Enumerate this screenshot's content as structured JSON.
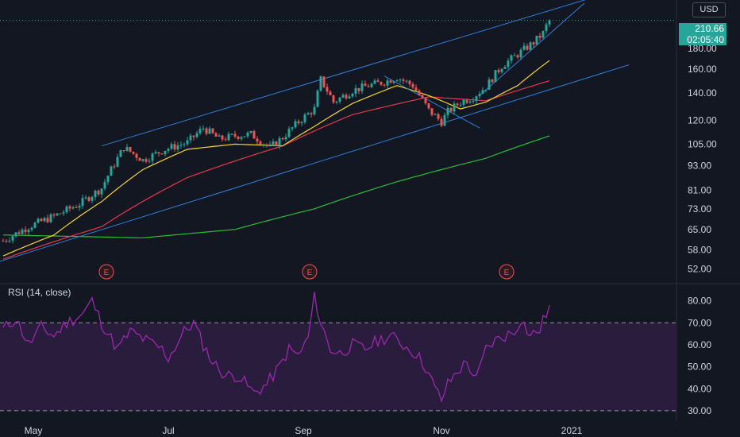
{
  "currency_button": "USD",
  "price_axis_top_label": "2",
  "last_price": "210.66",
  "countdown": "02:05:40",
  "earnings_marker": "E",
  "rsi_title": "RSI (14, close)",
  "colors": {
    "background": "#131722",
    "up": "#26a69a",
    "down": "#ef5350",
    "sma20": "#f7d531",
    "sma50": "#e5384e",
    "sma200": "#2bbd3a",
    "channel": "#2f7fd8",
    "rsi": "#9c27b0",
    "rsi_band": "#2a1c3c"
  },
  "chart_data": [
    {
      "type": "candlestick",
      "scale": "log",
      "ylim": [
        49,
        232
      ],
      "y_ticks": [
        "180.00",
        "160.00",
        "140.00",
        "120.00",
        "105.00",
        "93.00",
        "81.00",
        "73.00",
        "65.00",
        "58.00",
        "52.00"
      ],
      "x_ticks": [
        "May",
        "Jul",
        "Sep",
        "Nov",
        "2021"
      ],
      "last_price": 210.66,
      "close_anchors": [
        [
          0,
          61
        ],
        [
          8,
          66
        ],
        [
          16,
          70
        ],
        [
          24,
          75
        ],
        [
          31,
          82
        ],
        [
          38,
          103
        ],
        [
          44,
          96
        ],
        [
          51,
          102
        ],
        [
          58,
          106
        ],
        [
          63,
          115
        ],
        [
          68,
          108
        ],
        [
          73,
          110
        ],
        [
          78,
          111
        ],
        [
          84,
          103
        ],
        [
          88,
          109
        ],
        [
          93,
          119
        ],
        [
          98,
          128
        ],
        [
          100,
          151
        ],
        [
          104,
          133
        ],
        [
          110,
          142
        ],
        [
          115,
          146
        ],
        [
          120,
          149
        ],
        [
          124,
          153
        ],
        [
          129,
          146
        ],
        [
          134,
          127
        ],
        [
          138,
          119
        ],
        [
          140,
          126
        ],
        [
          144,
          133
        ],
        [
          148,
          137
        ],
        [
          152,
          145
        ],
        [
          157,
          163
        ],
        [
          162,
          174
        ],
        [
          167,
          186
        ],
        [
          170,
          196
        ],
        [
          172,
          212
        ]
      ],
      "sma20_anchors": [
        [
          0,
          56
        ],
        [
          16,
          63
        ],
        [
          31,
          76
        ],
        [
          44,
          91
        ],
        [
          58,
          102
        ],
        [
          73,
          105
        ],
        [
          88,
          104
        ],
        [
          98,
          116
        ],
        [
          110,
          132
        ],
        [
          124,
          146
        ],
        [
          134,
          138
        ],
        [
          144,
          128
        ],
        [
          152,
          133
        ],
        [
          162,
          146
        ],
        [
          172,
          168
        ]
      ],
      "sma50_anchors": [
        [
          0,
          55
        ],
        [
          31,
          66
        ],
        [
          58,
          87
        ],
        [
          88,
          104
        ],
        [
          110,
          124
        ],
        [
          134,
          137
        ],
        [
          152,
          134
        ],
        [
          172,
          150
        ]
      ],
      "sma200_anchors": [
        [
          0,
          63
        ],
        [
          44,
          62
        ],
        [
          73,
          65
        ],
        [
          98,
          73
        ],
        [
          124,
          85
        ],
        [
          152,
          97
        ],
        [
          172,
          110
        ]
      ],
      "channel_lines": [
        {
          "x": [
            31,
            186
          ],
          "y": [
            104,
            240
          ]
        },
        {
          "x": [
            -2,
            197
          ],
          "y": [
            54,
            164
          ]
        },
        {
          "x": [
            120,
            150
          ],
          "y": [
            154,
            115
          ]
        },
        {
          "x": [
            150,
            183
          ],
          "y": [
            138,
            232
          ]
        }
      ],
      "earnings_events_x": [
        33,
        97,
        159
      ]
    },
    {
      "type": "line",
      "title": "RSI (14, close)",
      "ylim": [
        26,
        86
      ],
      "y_ticks": [
        "80.00",
        "70.00",
        "60.00",
        "50.00",
        "40.00",
        "30.00"
      ],
      "bands": [
        30,
        70
      ],
      "anchors": [
        [
          0,
          67
        ],
        [
          4,
          72
        ],
        [
          8,
          60
        ],
        [
          12,
          68
        ],
        [
          16,
          64
        ],
        [
          20,
          70
        ],
        [
          25,
          74
        ],
        [
          28,
          80
        ],
        [
          31,
          70
        ],
        [
          36,
          58
        ],
        [
          40,
          66
        ],
        [
          45,
          62
        ],
        [
          50,
          58
        ],
        [
          52,
          54
        ],
        [
          57,
          66
        ],
        [
          60,
          70
        ],
        [
          63,
          60
        ],
        [
          66,
          52
        ],
        [
          70,
          46
        ],
        [
          74,
          46
        ],
        [
          79,
          38
        ],
        [
          83,
          42
        ],
        [
          87,
          50
        ],
        [
          90,
          58
        ],
        [
          93,
          55
        ],
        [
          96,
          63
        ],
        [
          98,
          82
        ],
        [
          100,
          70
        ],
        [
          103,
          58
        ],
        [
          106,
          56
        ],
        [
          110,
          60
        ],
        [
          114,
          58
        ],
        [
          118,
          62
        ],
        [
          122,
          64
        ],
        [
          126,
          60
        ],
        [
          130,
          56
        ],
        [
          133,
          50
        ],
        [
          136,
          40
        ],
        [
          138,
          35
        ],
        [
          140,
          42
        ],
        [
          143,
          48
        ],
        [
          146,
          52
        ],
        [
          149,
          44
        ],
        [
          152,
          58
        ],
        [
          155,
          62
        ],
        [
          158,
          64
        ],
        [
          161,
          66
        ],
        [
          163,
          72
        ],
        [
          166,
          64
        ],
        [
          169,
          67
        ],
        [
          172,
          78
        ]
      ]
    }
  ]
}
